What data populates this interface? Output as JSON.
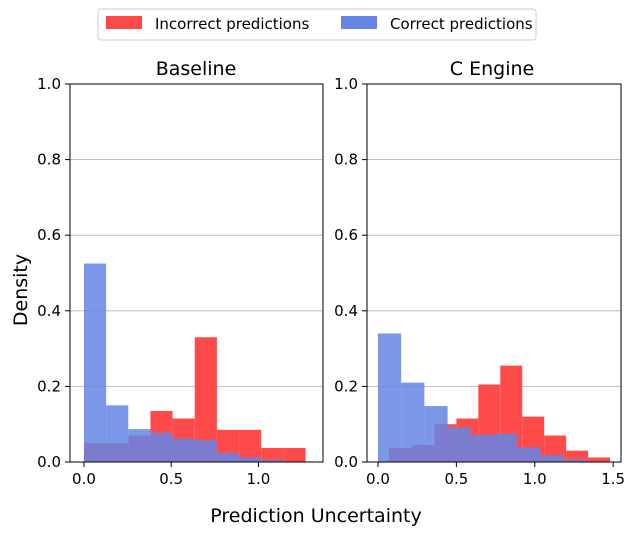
{
  "legend": {
    "incorrect_label": "Incorrect predictions",
    "correct_label": "Correct predictions"
  },
  "shared": {
    "ylabel": "Density",
    "xlabel": "Prediction Uncertainty"
  },
  "colors": {
    "incorrect": "#ff4a4a",
    "correct": "#6485e4",
    "overlap": "#6c5dcd",
    "grid": "#b0b0b0"
  },
  "chart_data": [
    {
      "type": "histogram",
      "title": "Baseline",
      "xlim": [
        -0.08,
        1.37
      ],
      "ylim": [
        0,
        1.0
      ],
      "xticks": [
        0.0,
        0.5,
        1.0
      ],
      "xtick_labels": [
        "0.0",
        "0.5",
        "1.0"
      ],
      "yticks": [
        0.0,
        0.2,
        0.4,
        0.6,
        0.8,
        1.0
      ],
      "ytick_labels": [
        "0.0",
        "0.2",
        "0.4",
        "0.6",
        "0.8",
        "1.0"
      ],
      "grid": "horizontal",
      "series": [
        {
          "name": "Incorrect predictions",
          "bin_edges": [
            0.0,
            0.127,
            0.254,
            0.381,
            0.508,
            0.635,
            0.762,
            0.889,
            1.016,
            1.143,
            1.27
          ],
          "values": [
            0.05,
            0.05,
            0.07,
            0.135,
            0.115,
            0.33,
            0.085,
            0.085,
            0.037,
            0.037
          ]
        },
        {
          "name": "Correct predictions",
          "bin_edges": [
            0.0,
            0.127,
            0.254,
            0.381,
            0.508,
            0.635,
            0.762,
            0.889,
            1.016,
            1.143,
            1.27
          ],
          "values": [
            0.525,
            0.15,
            0.087,
            0.077,
            0.062,
            0.058,
            0.024,
            0.012,
            0.006,
            0.0
          ]
        }
      ]
    },
    {
      "type": "histogram",
      "title": "C Engine",
      "xlim": [
        -0.07,
        1.55
      ],
      "ylim": [
        0,
        1.0
      ],
      "xticks": [
        0.0,
        0.5,
        1.0,
        1.5
      ],
      "xtick_labels": [
        "0.0",
        "0.5",
        "1.0",
        "1.5"
      ],
      "yticks": [
        0.0,
        0.2,
        0.4,
        0.6,
        0.8,
        1.0
      ],
      "ytick_labels": [
        "0.0",
        "0.2",
        "0.4",
        "0.6",
        "0.8",
        "1.0"
      ],
      "grid": "horizontal",
      "series": [
        {
          "name": "Incorrect predictions",
          "bin_edges": [
            0.0,
            0.148,
            0.296,
            0.444,
            0.592,
            0.74,
            0.888,
            1.036,
            1.184,
            1.332,
            1.48
          ],
          "values": [
            0.0,
            0.037,
            0.045,
            0.1,
            0.115,
            0.205,
            0.255,
            0.12,
            0.07,
            0.03,
            0.012
          ],
          "bin_edges_extended": [
            0.0,
            0.07,
            0.22,
            0.36,
            0.5,
            0.64,
            0.78,
            0.92,
            1.06,
            1.2,
            1.34,
            1.48
          ]
        },
        {
          "name": "Correct predictions",
          "bin_edges": [
            0.0,
            0.148,
            0.296,
            0.444,
            0.592,
            0.74,
            0.888,
            1.036,
            1.184,
            1.332,
            1.48
          ],
          "values": [
            0.34,
            0.21,
            0.148,
            0.092,
            0.072,
            0.075,
            0.038,
            0.018,
            0.007,
            0.0
          ]
        }
      ]
    }
  ]
}
